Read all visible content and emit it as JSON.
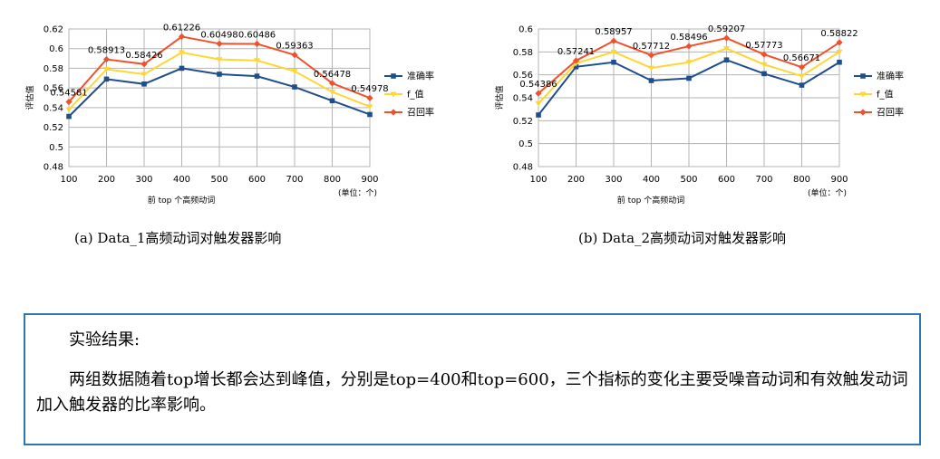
{
  "chart_data": [
    {
      "type": "line",
      "caption": "(a)  Data_1高频动词对触发器影响",
      "ylabel": "评估值",
      "xlabel": "前 top 个高频动词",
      "unit_note": "(单位：个)",
      "ylim": [
        0.48,
        0.62
      ],
      "yticks": [
        "0.48",
        "0.5",
        "0.52",
        "0.54",
        "0.56",
        "0.58",
        "0.6",
        "0.62"
      ],
      "categories": [
        "100",
        "200",
        "300",
        "400",
        "500",
        "600",
        "700",
        "800",
        "900"
      ],
      "legend_position": "right",
      "series": [
        {
          "name": "准确率",
          "color": "#1f4e8c",
          "marker": "square",
          "values": [
            0.531,
            0.569,
            0.564,
            0.58,
            0.574,
            0.572,
            0.561,
            0.547,
            0.533
          ]
        },
        {
          "name": "f_值",
          "color": "#ffd633",
          "marker": "triangle",
          "values": [
            0.538,
            0.579,
            0.574,
            0.596,
            0.589,
            0.588,
            0.577,
            0.556,
            0.541
          ]
        },
        {
          "name": "召回率",
          "color": "#f0512b",
          "marker": "diamond",
          "values": [
            0.54581,
            0.58913,
            0.58426,
            0.61226,
            0.60498,
            0.60486,
            0.59363,
            0.56478,
            0.54978
          ],
          "labels": [
            "0.54581",
            "0.58913",
            "0.58426",
            "0.61226",
            "0.60498",
            "0.60486",
            "0.59363",
            "0.56478",
            "0.54978"
          ]
        }
      ]
    },
    {
      "type": "line",
      "caption": "(b)  Data_2高频动词对触发器影响",
      "ylabel": "评估值",
      "xlabel": "前 top 个高频动词",
      "unit_note": "(单位：个)",
      "ylim": [
        0.48,
        0.6
      ],
      "yticks": [
        "0.48",
        "0.5",
        "0.52",
        "0.54",
        "0.56",
        "0.58",
        "0.6"
      ],
      "categories": [
        "100",
        "200",
        "300",
        "400",
        "500",
        "600",
        "700",
        "800",
        "900"
      ],
      "legend_position": "right",
      "series": [
        {
          "name": "准确率",
          "color": "#1f4e8c",
          "marker": "square",
          "values": [
            0.525,
            0.567,
            0.571,
            0.555,
            0.557,
            0.573,
            0.561,
            0.551,
            0.571
          ]
        },
        {
          "name": "f_值",
          "color": "#ffd633",
          "marker": "triangle",
          "values": [
            0.535,
            0.57,
            0.58,
            0.566,
            0.571,
            0.583,
            0.569,
            0.559,
            0.58
          ]
        },
        {
          "name": "召回率",
          "color": "#f0512b",
          "marker": "diamond",
          "values": [
            0.54386,
            0.57241,
            0.58957,
            0.57712,
            0.58496,
            0.59207,
            0.57773,
            0.56671,
            0.58822
          ],
          "labels": [
            "0.54386",
            "0.57241",
            "0.58957",
            "0.57712",
            "0.58496",
            "0.59207",
            "0.57773",
            "0.56671",
            "0.58822"
          ]
        }
      ]
    }
  ],
  "result": {
    "title": "实验结果:",
    "text": "两组数据随着top增长都会达到峰值，分别是top=400和top=600，三个指标的变化主要受噪音动词和有效触发动词加入触发器的比率影响。"
  }
}
